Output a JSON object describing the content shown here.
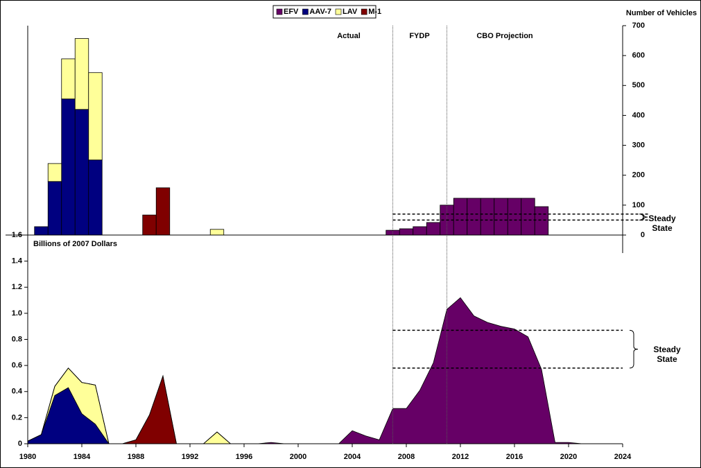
{
  "chart_data": [
    {
      "type": "bar",
      "title": "Number of Vehicles",
      "annotations": [
        "Actual",
        "FYDP",
        "CBO Projection"
      ],
      "periods": [
        2007,
        2011
      ],
      "steady_state": [
        50,
        70
      ],
      "steady_state_label": "Steady State",
      "xlim": [
        1980,
        2024
      ],
      "ylim": [
        0,
        700
      ],
      "yticks": [
        0,
        100,
        200,
        300,
        400,
        500,
        600,
        700
      ],
      "series": [
        {
          "name": "EFV",
          "color": "#660066",
          "x": [
            2007,
            2008,
            2009,
            2010,
            2011,
            2012,
            2013,
            2014,
            2015,
            2016,
            2017,
            2018
          ],
          "values": [
            16,
            21,
            28,
            42,
            100,
            123,
            123,
            123,
            123,
            123,
            123,
            95
          ]
        },
        {
          "name": "AAV-7",
          "color": "#000080",
          "x": [
            1981,
            1982,
            1983,
            1984,
            1985
          ],
          "values": [
            28,
            179,
            455,
            420,
            251
          ]
        },
        {
          "name": "LAV",
          "color": "#FFFF99",
          "x": [
            1982,
            1983,
            1984,
            1985,
            1994
          ],
          "values": [
            60,
            134,
            237,
            292,
            19
          ]
        },
        {
          "name": "M-1",
          "color": "#800000",
          "x": [
            1989,
            1990
          ],
          "values": [
            67,
            158
          ]
        }
      ]
    },
    {
      "type": "area",
      "y_label": "Billions of 2007 Dollars",
      "periods": [
        2007,
        2011
      ],
      "steady_state": [
        0.58,
        0.87
      ],
      "steady_state_label": "Steady State",
      "xlim": [
        1980,
        2024
      ],
      "xticks": [
        1980,
        1984,
        1988,
        1992,
        1996,
        2000,
        2004,
        2008,
        2012,
        2016,
        2020,
        2024
      ],
      "ylim": [
        0,
        1.6
      ],
      "yticks": [
        0,
        0.2,
        0.4,
        0.6,
        0.8,
        {
          "value": 1,
          "label": "1.0"
        },
        1.2,
        1.4,
        1.6
      ],
      "x": [
        1980,
        1981,
        1982,
        1983,
        1984,
        1985,
        1986,
        1987,
        1988,
        1989,
        1990,
        1991,
        1992,
        1993,
        1994,
        1995,
        1996,
        1997,
        1998,
        1999,
        2000,
        2001,
        2002,
        2003,
        2004,
        2005,
        2006,
        2007,
        2008,
        2009,
        2010,
        2011,
        2012,
        2013,
        2014,
        2015,
        2016,
        2017,
        2018,
        2019,
        2020,
        2021,
        2022,
        2023
      ],
      "series": [
        {
          "color": "#000080",
          "values": [
            0.02,
            0.07,
            0.37,
            0.43,
            0.23,
            0.15,
            0,
            0,
            0,
            0,
            0,
            0,
            0,
            0,
            0,
            0,
            0,
            0,
            0,
            0,
            0,
            0,
            0,
            0,
            0,
            0,
            0,
            0,
            0,
            0,
            0,
            0,
            0,
            0,
            0,
            0,
            0,
            0,
            0,
            0,
            0,
            0,
            0,
            0
          ]
        },
        {
          "color": "#FFFF99",
          "values": [
            0,
            0,
            0.07,
            0.15,
            0.24,
            0.3,
            0,
            0,
            0,
            0,
            0,
            0,
            0,
            0,
            0.09,
            0,
            0,
            0,
            0,
            0,
            0,
            0,
            0,
            0,
            0,
            0,
            0,
            0,
            0,
            0,
            0,
            0,
            0,
            0,
            0,
            0,
            0,
            0,
            0,
            0,
            0,
            0,
            0,
            0
          ]
        },
        {
          "color": "#800000",
          "values": [
            0,
            0,
            0,
            0,
            0,
            0,
            0,
            0,
            0.03,
            0.22,
            0.52,
            0,
            0,
            0,
            0,
            0,
            0,
            0,
            0,
            0,
            0,
            0,
            0,
            0,
            0,
            0,
            0,
            0,
            0,
            0,
            0,
            0,
            0,
            0,
            0,
            0,
            0,
            0,
            0,
            0,
            0,
            0,
            0,
            0
          ]
        },
        {
          "color": "#660066",
          "values": [
            0,
            0,
            0,
            0,
            0,
            0,
            0,
            0,
            0,
            0,
            0,
            0,
            0,
            0,
            0,
            0,
            0,
            0,
            0.01,
            0,
            0,
            0,
            0,
            0,
            0.1,
            0.06,
            0.03,
            0.27,
            0.27,
            0.41,
            0.62,
            1.03,
            1.12,
            0.98,
            0.93,
            0.9,
            0.88,
            0.82,
            0.57,
            0.01,
            0.01,
            0,
            0,
            0
          ]
        }
      ]
    }
  ]
}
